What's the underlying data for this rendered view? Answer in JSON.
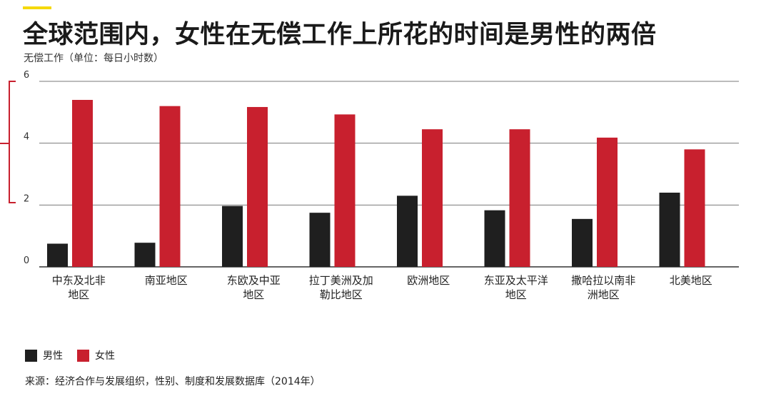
{
  "title": "全球范围内，女性在无偿工作上所花的时间是男性的两倍",
  "colors": {
    "accent": "#f5d90a",
    "male": "#1f1f1f",
    "female": "#c8202e",
    "grid": "#7a7a7a"
  },
  "legend": {
    "male": "男性",
    "female": "女性"
  },
  "source": "来源：经济合作与发展组织，性别、制度和发展数据库（2014年）",
  "chart_data": {
    "type": "bar",
    "title": "全球范围内，女性在无偿工作上所花的时间是男性的两倍",
    "ylabel": "无偿工作（单位：每日小时数）",
    "ylim": [
      0,
      6
    ],
    "yticks": [
      "0",
      "2",
      "4",
      "6"
    ],
    "grid": true,
    "legend_placement": "bottom-left",
    "categories": [
      [
        "中东及北非",
        "地区"
      ],
      [
        "南亚地区"
      ],
      [
        "东欧及中亚",
        "地区"
      ],
      [
        "拉丁美洲及加",
        "勒比地区"
      ],
      [
        "欧洲地区"
      ],
      [
        "东亚及太平洋",
        "地区"
      ],
      [
        "撒哈拉以南非",
        "洲地区"
      ],
      [
        "北美地区"
      ]
    ],
    "series": [
      {
        "name": "男性",
        "values": [
          0.75,
          0.78,
          1.97,
          1.75,
          2.3,
          1.83,
          1.55,
          2.4
        ]
      },
      {
        "name": "女性",
        "values": [
          5.4,
          5.2,
          5.17,
          4.93,
          4.45,
          4.45,
          4.18,
          3.8
        ]
      }
    ]
  }
}
